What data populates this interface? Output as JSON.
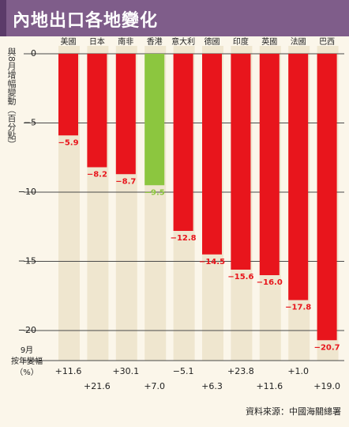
{
  "header": {
    "title": "內地出口各地變化"
  },
  "chart_data": {
    "type": "bar",
    "title": "內地出口各地變化",
    "ylabel": "與8月增幅變動（百分點）",
    "categories": [
      "美國",
      "日本",
      "南非",
      "香港",
      "意大利",
      "德國",
      "印度",
      "英國",
      "法國",
      "巴西"
    ],
    "values": [
      -5.9,
      -8.2,
      -8.7,
      -9.5,
      -12.8,
      -14.5,
      -15.6,
      -16.0,
      -17.8,
      -20.7
    ],
    "value_labels": [
      "−5.9",
      "−8.2",
      "−8.7",
      "−9.5",
      "−12.8",
      "−14.5",
      "−15.6",
      "−16.0",
      "−17.8",
      "−20.7"
    ],
    "ylim": [
      -21.5,
      0
    ],
    "yticks": [
      0,
      -5,
      -10,
      -15,
      -20
    ],
    "ytick_labels": [
      "0",
      "−5",
      "−10",
      "−15",
      "−20"
    ],
    "bar_colors": [
      "#e8151c",
      "#e8151c",
      "#e8151c",
      "#8cc63f",
      "#e8151c",
      "#e8151c",
      "#e8151c",
      "#e8151c",
      "#e8151c",
      "#e8151c"
    ],
    "september_label": [
      "9月",
      "按年變幅",
      "（%）"
    ],
    "september_growth": [
      "+11.6",
      "+21.6",
      "+30.1",
      "+7.0",
      "−5.1",
      "+6.3",
      "+23.8",
      "+11.6",
      "+1.0",
      "+19.0"
    ],
    "grid": true,
    "source": "資料來源：中國海關總署"
  }
}
